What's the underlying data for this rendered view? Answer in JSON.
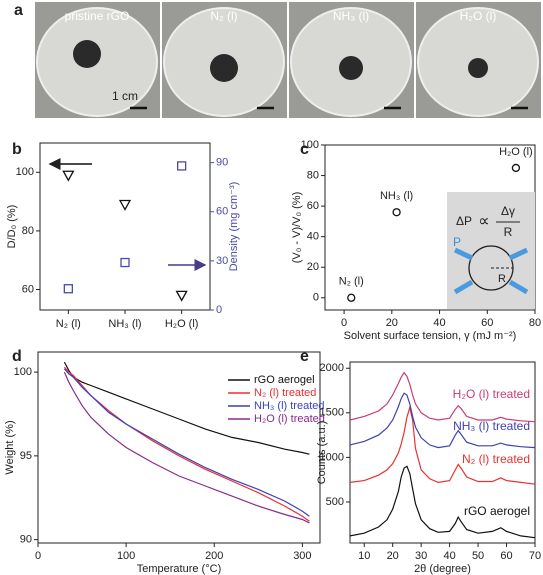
{
  "photo_panel": {
    "label": "a",
    "captions": [
      "pristine rGO",
      "N₂ (l)",
      "NH₃ (l)",
      "H₂O (l)"
    ],
    "scale_bar": "1 cm"
  },
  "chart_data": [
    {
      "type": "scatter",
      "panel_label": "b",
      "y_label": "D/D₀ (%)",
      "y2_label": "Density (mg cm⁻³)",
      "categories": [
        "N₂ (l)",
        "NH₃ (l)",
        "H₂O (l)"
      ],
      "ylim": [
        53,
        110
      ],
      "yticks": [
        60,
        80,
        100
      ],
      "y2lim": [
        0,
        102
      ],
      "y2ticks": [
        0,
        30,
        60,
        90
      ],
      "series": [
        {
          "marker": "triangle-down",
          "color": "#111111",
          "values": [
            99,
            89,
            58
          ]
        },
        {
          "marker": "square",
          "color": "#4a4aa8",
          "axis": "y2",
          "values": [
            13,
            29,
            88
          ]
        }
      ]
    },
    {
      "type": "scatter",
      "panel_label": "c",
      "x_label": "Solvent surface tension, γ (mJ m⁻²)",
      "y_label": "(V₀ - V)/V₀ (%)",
      "xlim": [
        -8,
        80
      ],
      "xticks": [
        0,
        20,
        40,
        60,
        80
      ],
      "ylim": [
        -8,
        100
      ],
      "yticks": [
        0,
        20,
        40,
        60,
        80,
        100
      ],
      "series": [
        {
          "marker": "circle",
          "color": "#111111",
          "x": [
            3,
            22,
            72
          ],
          "values": [
            0,
            56,
            85
          ],
          "point_labels": [
            "N₂ (l)",
            "NH₃ (l)",
            "H₂O (l)"
          ]
        }
      ],
      "inset": {
        "delta_p": "ΔP",
        "proportional": "∝",
        "delta_gamma": "Δγ",
        "denominator": "R",
        "pressure": "P",
        "radius": "R"
      }
    },
    {
      "type": "line",
      "panel_label": "d",
      "x_label": "Temperature (°C)",
      "y_label": "Weight (%)",
      "xlim": [
        0,
        320
      ],
      "xticks": [
        0,
        100,
        200,
        300
      ],
      "ylim": [
        89.8,
        101.2
      ],
      "yticks": [
        90,
        95,
        100
      ],
      "legend": "upper right",
      "x": [
        30,
        35,
        40,
        50,
        60,
        80,
        100,
        130,
        160,
        190,
        220,
        250,
        280,
        300,
        308
      ],
      "series": [
        {
          "name": "rGO aerogel",
          "color": "#111111",
          "values": [
            100.6,
            100.1,
            99.7,
            99.4,
            99.2,
            98.8,
            98.4,
            97.8,
            97.2,
            96.6,
            96.1,
            95.8,
            95.4,
            95.2,
            95.1
          ]
        },
        {
          "name": "N₂ (l) treated",
          "color": "#e53030",
          "values": [
            100.3,
            100,
            99.8,
            99.2,
            98.6,
            97.7,
            96.9,
            95.9,
            95.0,
            94.2,
            93.5,
            92.8,
            92.0,
            91.4,
            91.1
          ]
        },
        {
          "name": "NH₃ (l) treated",
          "color": "#3a3fc0",
          "values": [
            100.2,
            99.9,
            99.7,
            99.1,
            98.6,
            97.6,
            96.9,
            96.0,
            95.1,
            94.3,
            93.6,
            93.0,
            92.3,
            91.7,
            91.4
          ]
        },
        {
          "name": "H₂O (l) treated",
          "color": "#8a2a8a",
          "values": [
            100.0,
            99.4,
            98.9,
            98.0,
            97.3,
            96.3,
            95.5,
            94.6,
            93.8,
            93.2,
            92.6,
            92.0,
            91.5,
            91.2,
            91.0
          ]
        }
      ]
    },
    {
      "type": "line",
      "panel_label": "e",
      "x_label": "2θ (degree)",
      "y_label": "Counts (a.u.)",
      "xlim": [
        5,
        70
      ],
      "xticks": [
        10,
        20,
        30,
        40,
        50,
        60,
        70
      ],
      "ylim": [
        40,
        2070
      ],
      "yticks": [
        500,
        1000,
        1500,
        2000
      ],
      "legend": "inline",
      "x": [
        5,
        10,
        15,
        18,
        20,
        22,
        23,
        24,
        25,
        26,
        27,
        28,
        30,
        33,
        36,
        40,
        42,
        43,
        44,
        46,
        50,
        55,
        58,
        60,
        65,
        70
      ],
      "series": [
        {
          "name": "rGO aerogel",
          "color": "#111111",
          "values": [
            120,
            150,
            220,
            300,
            420,
            620,
            780,
            880,
            900,
            820,
            650,
            480,
            300,
            200,
            160,
            170,
            260,
            330,
            280,
            190,
            150,
            170,
            210,
            170,
            120,
            100
          ]
        },
        {
          "name": "N₂ (l) treated",
          "color": "#e83030",
          "values": [
            720,
            740,
            800,
            860,
            930,
            1050,
            1150,
            1280,
            1450,
            1560,
            1420,
            1100,
            860,
            760,
            720,
            740,
            860,
            920,
            880,
            780,
            730,
            730,
            770,
            740,
            720,
            700
          ]
        },
        {
          "name": "NH₃ (l) treated",
          "color": "#4040b0",
          "values": [
            1140,
            1180,
            1250,
            1330,
            1420,
            1570,
            1660,
            1720,
            1700,
            1600,
            1460,
            1340,
            1220,
            1140,
            1110,
            1130,
            1250,
            1300,
            1260,
            1170,
            1130,
            1130,
            1160,
            1140,
            1120,
            1110
          ]
        },
        {
          "name": "H₂O (l) treated",
          "color": "#c83c78",
          "values": [
            1420,
            1460,
            1520,
            1600,
            1700,
            1830,
            1900,
            1950,
            1910,
            1820,
            1700,
            1600,
            1500,
            1440,
            1420,
            1440,
            1540,
            1580,
            1550,
            1460,
            1420,
            1420,
            1450,
            1430,
            1410,
            1400
          ]
        }
      ]
    }
  ]
}
